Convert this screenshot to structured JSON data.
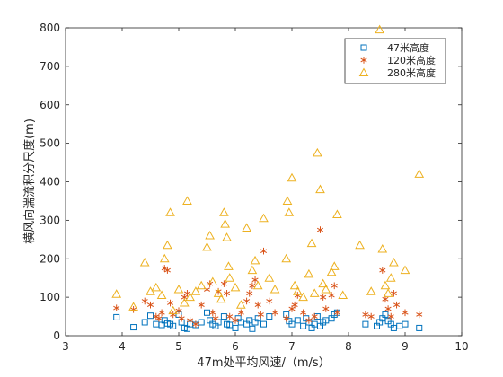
{
  "chart_data": {
    "type": "scatter",
    "xlabel": "47m处平均风速/（m/s）",
    "ylabel": "横风向湍流积分尺度(m)",
    "xlim": [
      3,
      10
    ],
    "ylim": [
      0,
      800
    ],
    "xticks": [
      3,
      4,
      5,
      6,
      7,
      8,
      9,
      10
    ],
    "yticks": [
      0,
      100,
      200,
      300,
      400,
      500,
      600,
      700,
      800
    ],
    "grid": false,
    "legend_position": "top-right",
    "series": [
      {
        "name": "47米高度",
        "marker": "square",
        "color": "#0072BD",
        "points": [
          [
            3.9,
            48
          ],
          [
            4.2,
            22
          ],
          [
            4.4,
            35
          ],
          [
            4.5,
            52
          ],
          [
            4.6,
            30
          ],
          [
            4.7,
            28
          ],
          [
            4.75,
            40
          ],
          [
            4.8,
            32
          ],
          [
            4.85,
            30
          ],
          [
            4.9,
            25
          ],
          [
            5.0,
            55
          ],
          [
            5.05,
            35
          ],
          [
            5.1,
            20
          ],
          [
            5.15,
            18
          ],
          [
            5.2,
            30
          ],
          [
            5.3,
            28
          ],
          [
            5.4,
            35
          ],
          [
            5.5,
            60
          ],
          [
            5.55,
            40
          ],
          [
            5.6,
            30
          ],
          [
            5.65,
            25
          ],
          [
            5.7,
            35
          ],
          [
            5.8,
            50
          ],
          [
            5.85,
            30
          ],
          [
            5.9,
            28
          ],
          [
            6.0,
            20
          ],
          [
            6.05,
            45
          ],
          [
            6.1,
            35
          ],
          [
            6.2,
            30
          ],
          [
            6.25,
            40
          ],
          [
            6.3,
            18
          ],
          [
            6.35,
            35
          ],
          [
            6.4,
            45
          ],
          [
            6.5,
            30
          ],
          [
            6.6,
            50
          ],
          [
            6.9,
            55
          ],
          [
            6.95,
            38
          ],
          [
            7.0,
            30
          ],
          [
            7.1,
            40
          ],
          [
            7.2,
            25
          ],
          [
            7.25,
            45
          ],
          [
            7.3,
            35
          ],
          [
            7.35,
            20
          ],
          [
            7.4,
            30
          ],
          [
            7.45,
            50
          ],
          [
            7.5,
            25
          ],
          [
            7.55,
            35
          ],
          [
            7.6,
            40
          ],
          [
            7.7,
            45
          ],
          [
            7.75,
            55
          ],
          [
            7.8,
            60
          ],
          [
            8.3,
            30
          ],
          [
            8.5,
            25
          ],
          [
            8.55,
            35
          ],
          [
            8.6,
            45
          ],
          [
            8.65,
            55
          ],
          [
            8.7,
            38
          ],
          [
            8.75,
            30
          ],
          [
            8.8,
            20
          ],
          [
            8.9,
            25
          ],
          [
            9.0,
            30
          ],
          [
            9.25,
            20
          ]
        ]
      },
      {
        "name": "120米高度",
        "marker": "asterisk",
        "color": "#D95319",
        "points": [
          [
            3.9,
            72
          ],
          [
            4.2,
            68
          ],
          [
            4.4,
            90
          ],
          [
            4.5,
            80
          ],
          [
            4.6,
            50
          ],
          [
            4.65,
            45
          ],
          [
            4.7,
            60
          ],
          [
            4.75,
            175
          ],
          [
            4.8,
            170
          ],
          [
            4.85,
            85
          ],
          [
            4.9,
            55
          ],
          [
            5.0,
            65
          ],
          [
            5.05,
            45
          ],
          [
            5.1,
            100
          ],
          [
            5.15,
            110
          ],
          [
            5.2,
            40
          ],
          [
            5.3,
            30
          ],
          [
            5.4,
            80
          ],
          [
            5.5,
            120
          ],
          [
            5.55,
            135
          ],
          [
            5.6,
            60
          ],
          [
            5.65,
            45
          ],
          [
            5.7,
            115
          ],
          [
            5.8,
            135
          ],
          [
            5.85,
            110
          ],
          [
            5.9,
            50
          ],
          [
            6.0,
            40
          ],
          [
            6.1,
            60
          ],
          [
            6.2,
            90
          ],
          [
            6.25,
            110
          ],
          [
            6.3,
            130
          ],
          [
            6.35,
            145
          ],
          [
            6.4,
            80
          ],
          [
            6.45,
            55
          ],
          [
            6.5,
            220
          ],
          [
            6.6,
            90
          ],
          [
            6.7,
            60
          ],
          [
            6.9,
            45
          ],
          [
            7.0,
            70
          ],
          [
            7.05,
            80
          ],
          [
            7.1,
            105
          ],
          [
            7.2,
            60
          ],
          [
            7.3,
            40
          ],
          [
            7.4,
            50
          ],
          [
            7.5,
            275
          ],
          [
            7.55,
            100
          ],
          [
            7.6,
            70
          ],
          [
            7.7,
            105
          ],
          [
            7.75,
            130
          ],
          [
            7.8,
            60
          ],
          [
            8.3,
            55
          ],
          [
            8.4,
            50
          ],
          [
            8.6,
            170
          ],
          [
            8.65,
            95
          ],
          [
            8.7,
            70
          ],
          [
            8.75,
            50
          ],
          [
            8.8,
            110
          ],
          [
            8.85,
            80
          ],
          [
            9.0,
            60
          ],
          [
            9.25,
            55
          ]
        ]
      },
      {
        "name": "280米高度",
        "marker": "triangle",
        "color": "#EDB120",
        "points": [
          [
            3.9,
            108
          ],
          [
            4.2,
            75
          ],
          [
            4.4,
            190
          ],
          [
            4.5,
            115
          ],
          [
            4.6,
            125
          ],
          [
            4.7,
            105
          ],
          [
            4.75,
            200
          ],
          [
            4.8,
            235
          ],
          [
            4.85,
            320
          ],
          [
            4.9,
            65
          ],
          [
            5.0,
            120
          ],
          [
            5.1,
            85
          ],
          [
            5.15,
            350
          ],
          [
            5.2,
            100
          ],
          [
            5.3,
            115
          ],
          [
            5.4,
            130
          ],
          [
            5.5,
            230
          ],
          [
            5.55,
            260
          ],
          [
            5.6,
            140
          ],
          [
            5.7,
            110
          ],
          [
            5.75,
            95
          ],
          [
            5.8,
            320
          ],
          [
            5.82,
            290
          ],
          [
            5.85,
            255
          ],
          [
            5.88,
            180
          ],
          [
            5.9,
            150
          ],
          [
            6.0,
            125
          ],
          [
            6.1,
            80
          ],
          [
            6.2,
            280
          ],
          [
            6.3,
            170
          ],
          [
            6.35,
            195
          ],
          [
            6.4,
            130
          ],
          [
            6.5,
            305
          ],
          [
            6.6,
            150
          ],
          [
            6.7,
            120
          ],
          [
            6.9,
            200
          ],
          [
            6.92,
            350
          ],
          [
            6.95,
            320
          ],
          [
            7.0,
            410
          ],
          [
            7.05,
            130
          ],
          [
            7.1,
            115
          ],
          [
            7.2,
            100
          ],
          [
            7.3,
            160
          ],
          [
            7.35,
            240
          ],
          [
            7.4,
            110
          ],
          [
            7.45,
            475
          ],
          [
            7.5,
            380
          ],
          [
            7.55,
            135
          ],
          [
            7.6,
            120
          ],
          [
            7.7,
            165
          ],
          [
            7.75,
            180
          ],
          [
            7.8,
            315
          ],
          [
            7.9,
            105
          ],
          [
            8.2,
            235
          ],
          [
            8.4,
            115
          ],
          [
            8.55,
            795
          ],
          [
            8.6,
            225
          ],
          [
            8.65,
            130
          ],
          [
            8.7,
            110
          ],
          [
            8.75,
            150
          ],
          [
            8.8,
            190
          ],
          [
            9.0,
            170
          ],
          [
            9.25,
            420
          ]
        ]
      }
    ]
  }
}
